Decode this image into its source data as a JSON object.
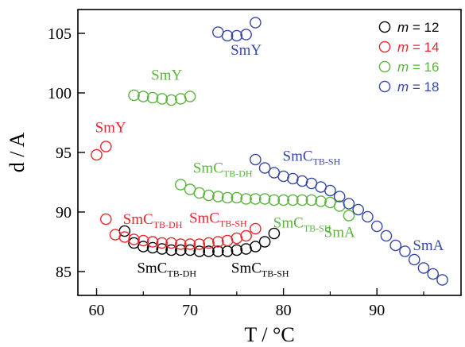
{
  "chart_data": {
    "type": "scatter",
    "xlabel": "T / °C",
    "ylabel": "d / A",
    "xlim": [
      58,
      99
    ],
    "ylim": [
      83,
      107
    ],
    "xticks": [
      60,
      70,
      80,
      90
    ],
    "yticks": [
      85,
      90,
      95,
      100,
      105
    ],
    "grid": false,
    "legend_position": "top-right",
    "series": [
      {
        "name": "m = 12",
        "color": "#000000",
        "points": [
          [
            63,
            88.4
          ],
          [
            64,
            87.4
          ],
          [
            65,
            87.1
          ],
          [
            66,
            87.0
          ],
          [
            67,
            86.9
          ],
          [
            68,
            86.8
          ],
          [
            69,
            86.8
          ],
          [
            70,
            86.8
          ],
          [
            71,
            86.7
          ],
          [
            72,
            86.7
          ],
          [
            73,
            86.7
          ],
          [
            74,
            86.7
          ],
          [
            75,
            86.8
          ],
          [
            76,
            86.9
          ],
          [
            77,
            87.1
          ],
          [
            78,
            87.5
          ],
          [
            79,
            88.2
          ]
        ]
      },
      {
        "name": "m = 14",
        "color": "#e8262c",
        "points": [
          [
            60,
            94.8
          ],
          [
            61,
            95.5
          ],
          [
            61,
            89.4
          ],
          [
            62,
            88.1
          ],
          [
            63,
            87.9
          ],
          [
            64,
            87.7
          ],
          [
            65,
            87.6
          ],
          [
            66,
            87.5
          ],
          [
            67,
            87.4
          ],
          [
            68,
            87.4
          ],
          [
            69,
            87.3
          ],
          [
            70,
            87.3
          ],
          [
            71,
            87.3
          ],
          [
            72,
            87.4
          ],
          [
            73,
            87.5
          ],
          [
            74,
            87.6
          ],
          [
            75,
            87.8
          ],
          [
            76,
            88.0
          ],
          [
            77,
            88.6
          ]
        ]
      },
      {
        "name": "m = 16",
        "color": "#5ab43e",
        "points": [
          [
            64,
            99.8
          ],
          [
            65,
            99.7
          ],
          [
            66,
            99.6
          ],
          [
            67,
            99.5
          ],
          [
            68,
            99.4
          ],
          [
            69,
            99.5
          ],
          [
            70,
            99.7
          ],
          [
            69,
            92.3
          ],
          [
            70,
            91.9
          ],
          [
            71,
            91.6
          ],
          [
            72,
            91.4
          ],
          [
            73,
            91.3
          ],
          [
            74,
            91.2
          ],
          [
            75,
            91.2
          ],
          [
            76,
            91.1
          ],
          [
            77,
            91.1
          ],
          [
            78,
            91.1
          ],
          [
            79,
            91.0
          ],
          [
            80,
            91.0
          ],
          [
            81,
            91.0
          ],
          [
            82,
            91.0
          ],
          [
            83,
            91.0
          ],
          [
            84,
            90.9
          ],
          [
            85,
            90.8
          ],
          [
            86,
            90.5
          ],
          [
            87,
            89.7
          ]
        ]
      },
      {
        "name": "m = 18",
        "color": "#3548a6",
        "points": [
          [
            73,
            105.1
          ],
          [
            74,
            104.8
          ],
          [
            75,
            104.8
          ],
          [
            76,
            104.9
          ],
          [
            77,
            105.9
          ],
          [
            77,
            94.4
          ],
          [
            78,
            93.7
          ],
          [
            79,
            93.3
          ],
          [
            80,
            93.0
          ],
          [
            81,
            92.8
          ],
          [
            82,
            92.6
          ],
          [
            83,
            92.4
          ],
          [
            84,
            92.1
          ],
          [
            85,
            91.8
          ],
          [
            86,
            91.3
          ],
          [
            87,
            90.7
          ],
          [
            88,
            90.2
          ],
          [
            89,
            89.6
          ],
          [
            90,
            88.8
          ],
          [
            91,
            88.0
          ],
          [
            92,
            87.2
          ],
          [
            93,
            86.7
          ],
          [
            94,
            86.0
          ],
          [
            95,
            85.3
          ],
          [
            96,
            84.8
          ],
          [
            97,
            84.3
          ]
        ]
      }
    ],
    "annotations": [
      {
        "base": "SmY",
        "sub": "",
        "x": 76,
        "y": 103.2,
        "color": "#3548a6"
      },
      {
        "base": "SmY",
        "sub": "",
        "x": 67.5,
        "y": 101.1,
        "color": "#5ab43e"
      },
      {
        "base": "SmY",
        "sub": "",
        "x": 61.5,
        "y": 96.7,
        "color": "#e8262c"
      },
      {
        "base": "SmC",
        "sub": "TB-SH",
        "x": 83,
        "y": 94.3,
        "color": "#3548a6"
      },
      {
        "base": "SmC",
        "sub": "TB-DH",
        "x": 73.5,
        "y": 93.3,
        "color": "#5ab43e"
      },
      {
        "base": "SmC",
        "sub": "TB-DH",
        "x": 66,
        "y": 89.0,
        "color": "#e8262c"
      },
      {
        "base": "SmC",
        "sub": "TB-SH",
        "x": 73,
        "y": 89.1,
        "color": "#e8262c"
      },
      {
        "base": "SmC",
        "sub": "TB-SH",
        "x": 82,
        "y": 88.7,
        "color": "#5ab43e"
      },
      {
        "base": "SmA",
        "sub": "",
        "x": 86,
        "y": 87.9,
        "color": "#5ab43e"
      },
      {
        "base": "SmA",
        "sub": "",
        "x": 95.5,
        "y": 86.8,
        "color": "#3548a6"
      },
      {
        "base": "SmC",
        "sub": "TB-DH",
        "x": 67.5,
        "y": 84.9,
        "color": "#000000"
      },
      {
        "base": "SmC",
        "sub": "TB-SH",
        "x": 77.5,
        "y": 84.9,
        "color": "#000000"
      }
    ]
  }
}
